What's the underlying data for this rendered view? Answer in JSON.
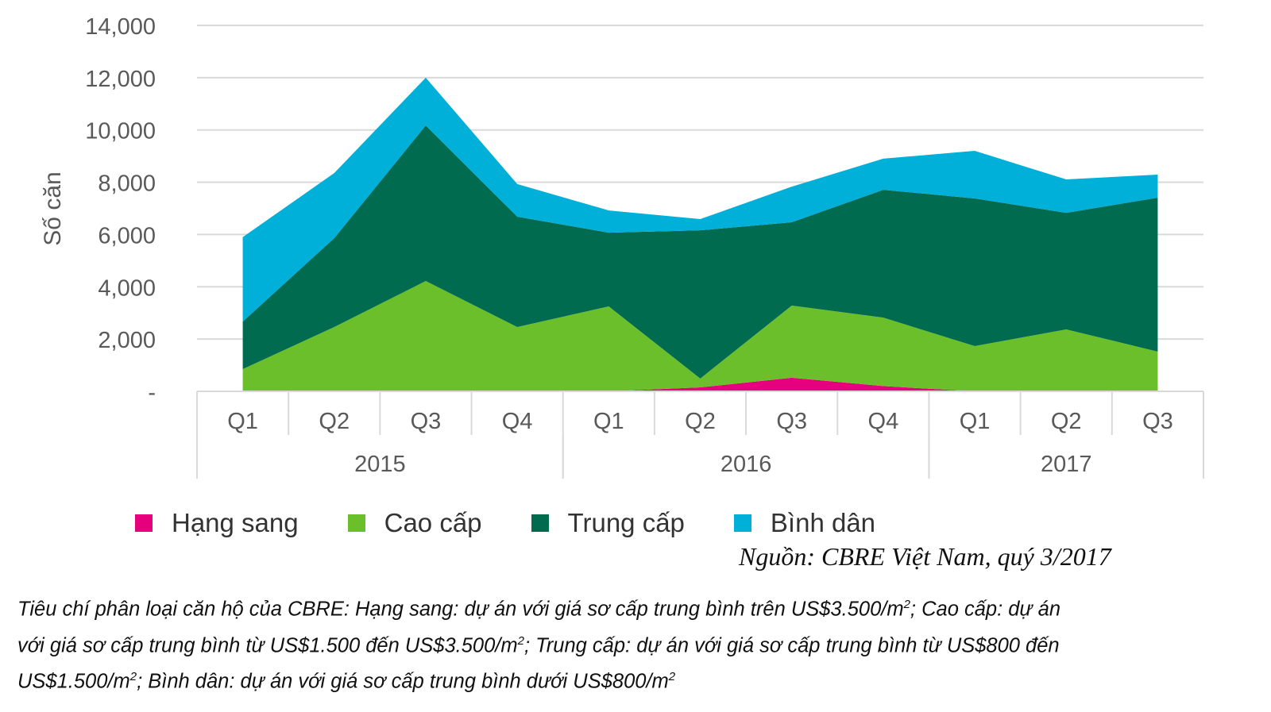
{
  "chart_data": {
    "type": "area",
    "stacked": true,
    "title": "",
    "xlabel": "",
    "ylabel": "Số căn",
    "ylim": [
      0,
      14000
    ],
    "yticks": [
      0,
      2000,
      4000,
      6000,
      8000,
      10000,
      12000,
      14000
    ],
    "ytick_labels": [
      "-",
      "2,000",
      "4,000",
      "6,000",
      "8,000",
      "10,000",
      "12,000",
      "14,000"
    ],
    "grid": true,
    "categories": [
      "Q1",
      "Q2",
      "Q3",
      "Q4",
      "Q1",
      "Q2",
      "Q3",
      "Q4",
      "Q1",
      "Q2",
      "Q3"
    ],
    "years": [
      {
        "label": "2015",
        "span": 4
      },
      {
        "label": "2016",
        "span": 4
      },
      {
        "label": "2017",
        "span": 3
      }
    ],
    "legend_position": "bottom",
    "series": [
      {
        "name": "Hạng sang",
        "color": "#e6007e",
        "values": [
          0,
          0,
          0,
          0,
          0,
          150,
          520,
          200,
          0,
          0,
          0
        ]
      },
      {
        "name": "Cao cấp",
        "color": "#6abf2a",
        "values": [
          850,
          2460,
          4220,
          2460,
          3250,
          340,
          2760,
          2620,
          1730,
          2370,
          1520
        ]
      },
      {
        "name": "Trung cấp",
        "color": "#006b4f",
        "values": [
          1820,
          3400,
          5950,
          4220,
          2820,
          5670,
          3190,
          4890,
          5650,
          4460,
          5890
        ]
      },
      {
        "name": "Bình dân",
        "color": "#00b0d8",
        "values": [
          3230,
          2490,
          1830,
          1250,
          850,
          430,
          1360,
          1190,
          1820,
          1280,
          880
        ]
      }
    ]
  },
  "source": "Nguồn: CBRE Việt Nam, quý 3/2017",
  "footnote": [
    [
      {
        "t": "Tiêu chí phân loại căn hộ của CBRE: Hạng sang: dự án với giá sơ cấp trung bình trên US$3.500/m"
      },
      {
        "s": "2"
      },
      {
        "t": "; Cao cấp: dự án"
      }
    ],
    [
      {
        "t": "với giá sơ cấp trung bình từ US$1.500 đến US$3.500/m"
      },
      {
        "s": "2"
      },
      {
        "t": "; Trung cấp: dự án với giá sơ cấp trung bình từ US$800 đến"
      }
    ],
    [
      {
        "t": "US$1.500/m"
      },
      {
        "s": "2"
      },
      {
        "t": "; Bình dân: dự án với giá sơ cấp trung bình dưới US$800/m"
      },
      {
        "s": "2"
      }
    ]
  ]
}
